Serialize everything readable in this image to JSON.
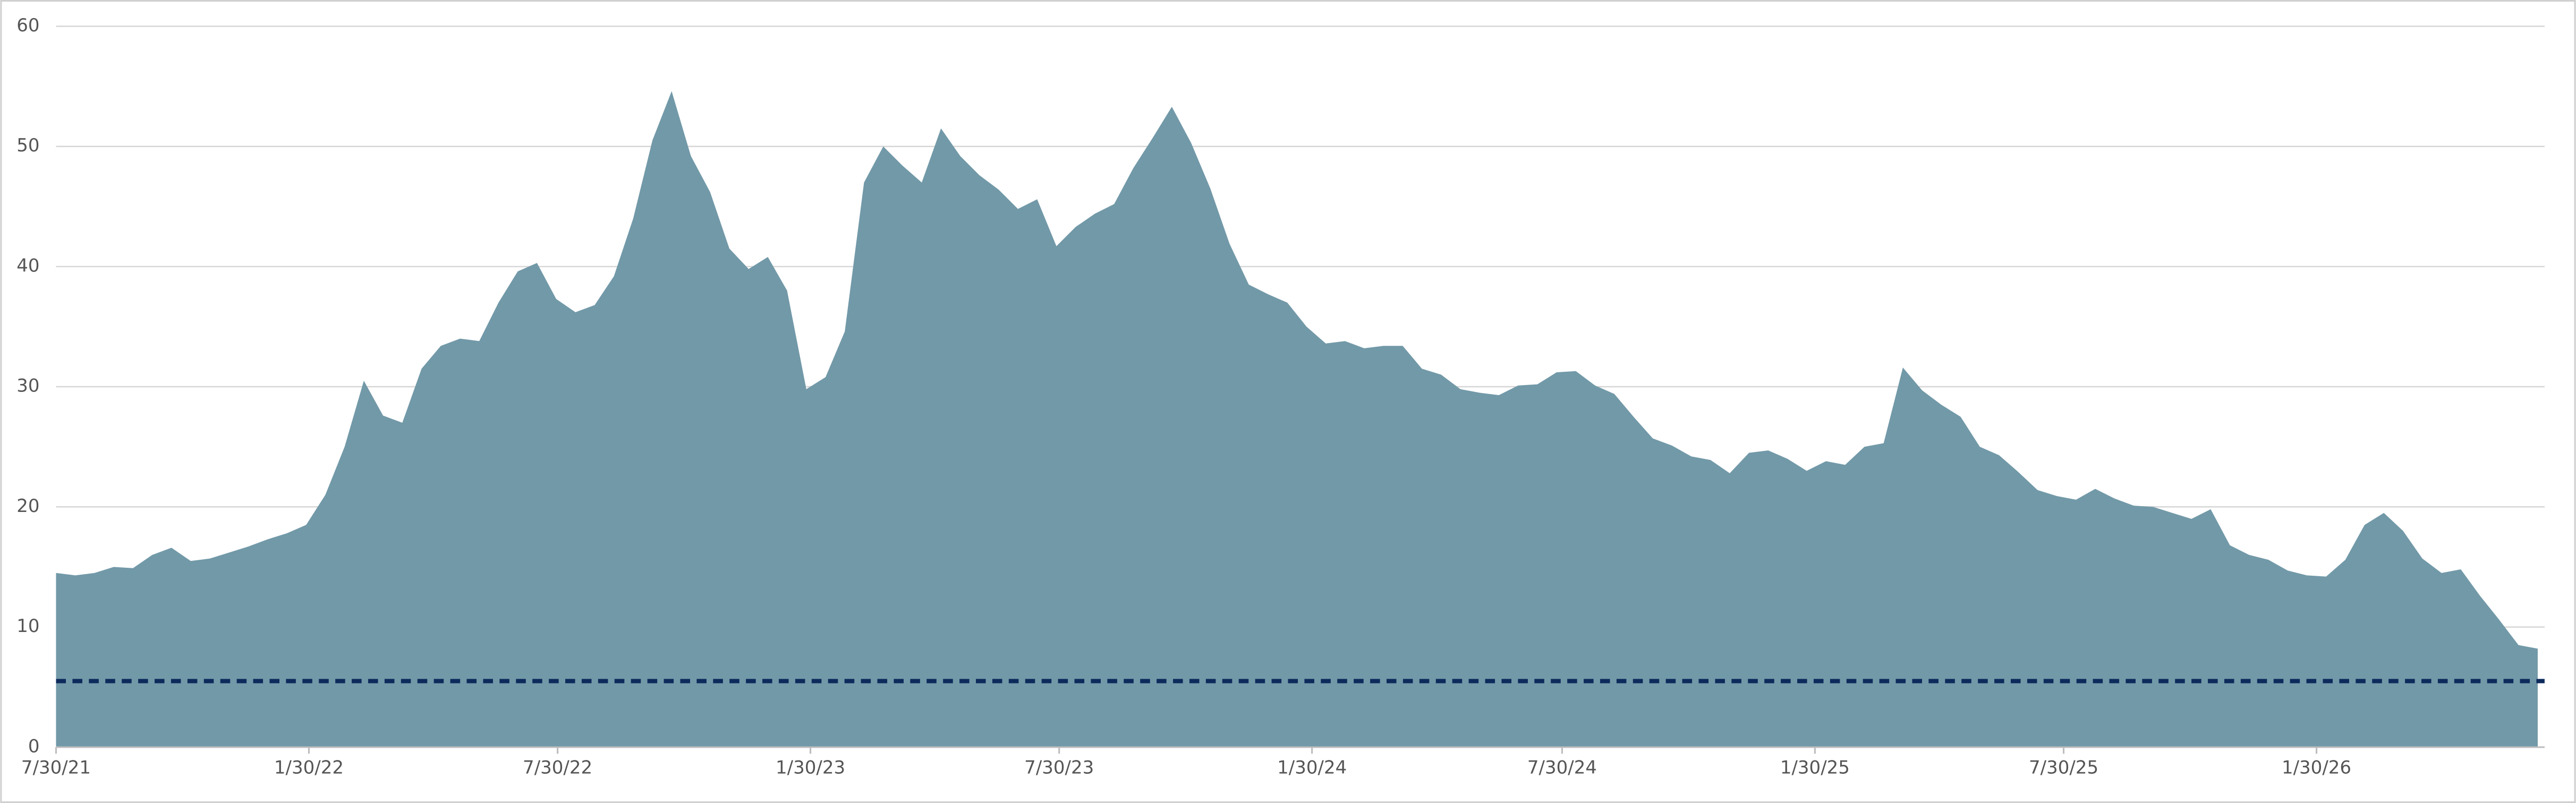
{
  "chart_data": {
    "type": "area",
    "color": "#7299a8",
    "grid": true,
    "x": [
      "7/30/21",
      "8/13/21",
      "8/27/21",
      "9/10/21",
      "9/24/21",
      "10/8/21",
      "10/22/21",
      "11/5/21",
      "11/19/21",
      "12/3/21",
      "12/17/21",
      "12/31/21",
      "1/14/22",
      "1/28/22",
      "2/11/22",
      "2/25/22",
      "3/11/22",
      "3/25/22",
      "4/8/22",
      "4/22/22",
      "5/6/22",
      "5/20/22",
      "6/3/22",
      "6/17/22",
      "7/1/22",
      "7/15/22",
      "7/29/22",
      "8/12/22",
      "8/26/22",
      "9/9/22",
      "9/23/22",
      "10/7/22",
      "10/21/22",
      "11/4/22",
      "11/18/22",
      "12/2/22",
      "12/16/22",
      "12/30/22",
      "1/13/23",
      "1/27/23",
      "2/10/23",
      "2/24/23",
      "3/10/23",
      "3/24/23",
      "4/7/23",
      "4/21/23",
      "5/5/23",
      "5/19/23",
      "6/2/23",
      "6/16/23",
      "6/30/23",
      "7/14/23",
      "7/28/23",
      "8/11/23",
      "8/25/23",
      "9/8/23",
      "9/22/23",
      "10/6/23",
      "10/20/23",
      "11/3/23",
      "11/17/23",
      "12/1/23",
      "12/15/23",
      "12/29/23",
      "1/12/24",
      "1/26/24",
      "2/9/24",
      "2/23/24",
      "3/8/24",
      "3/22/24",
      "4/5/24",
      "4/19/24",
      "5/3/24",
      "5/17/24",
      "5/31/24",
      "6/14/24",
      "6/28/24",
      "7/12/24",
      "7/26/24",
      "8/9/24",
      "8/23/24",
      "9/6/24",
      "9/20/24",
      "10/4/24",
      "10/18/24",
      "11/1/24",
      "11/15/24",
      "11/29/24",
      "12/13/24",
      "12/27/24",
      "1/10/25",
      "1/24/25",
      "2/7/25",
      "2/21/25",
      "3/7/25",
      "3/21/25",
      "4/4/25",
      "4/18/25",
      "5/2/25",
      "5/16/25",
      "5/30/25",
      "6/13/25",
      "6/27/25",
      "7/11/25",
      "7/25/25",
      "8/8/25",
      "8/22/25",
      "9/5/25",
      "9/19/25",
      "10/3/25",
      "10/17/25",
      "10/31/25",
      "11/14/25",
      "11/28/25",
      "12/12/25",
      "12/26/25",
      "1/9/26",
      "1/23/26",
      "2/6/26",
      "2/20/26",
      "3/6/26",
      "3/20/26",
      "4/3/26",
      "4/17/26",
      "5/1/26",
      "5/15/26",
      "5/29/26",
      "6/12/26",
      "6/26/26",
      "7/10/26"
    ],
    "values": [
      14.5,
      14.3,
      14.5,
      15,
      14.9,
      16,
      16.6,
      15.5,
      15.7,
      16.2,
      16.7,
      17.3,
      17.8,
      18.5,
      21,
      25,
      30.5,
      27.6,
      27,
      31.5,
      33.4,
      34,
      33.8,
      37,
      39.6,
      40.3,
      37.3,
      36.2,
      36.8,
      39.2,
      44,
      50.5,
      54.6,
      49.2,
      46.2,
      41.5,
      39.8,
      40.8,
      38,
      29.8,
      30.8,
      34.6,
      47,
      50,
      48.4,
      47,
      51.5,
      49.2,
      47.6,
      46.4,
      44.8,
      45.6,
      41.7,
      43.3,
      44.4,
      45.2,
      48.2,
      50.7,
      53.3,
      50.3,
      46.5,
      41.9,
      38.5,
      37.7,
      37,
      35,
      33.6,
      33.8,
      33.2,
      33.4,
      33.4,
      31.5,
      31,
      29.8,
      29.5,
      29.3,
      30.1,
      30.2,
      31.2,
      31.3,
      30.1,
      29.4,
      27.5,
      25.7,
      25.1,
      24.2,
      23.9,
      22.8,
      24.5,
      24.7,
      24,
      23,
      23.8,
      23.5,
      25,
      25.3,
      31.6,
      29.7,
      28.5,
      27.5,
      25,
      24.3,
      22.9,
      21.4,
      20.9,
      20.6,
      21.5,
      20.7,
      20.1,
      20,
      19.5,
      19,
      19.8,
      16.8,
      16,
      15.6,
      14.7,
      14.3,
      14.2,
      15.6,
      18.5,
      19.5,
      18,
      15.7,
      14.5,
      14.8,
      12.6,
      10.6,
      8.5,
      8.2
    ],
    "xlim": [
      "7/30/21",
      "7/15/26"
    ],
    "xticks": [
      "7/30/21",
      "1/30/22",
      "7/30/22",
      "1/30/23",
      "7/30/23",
      "1/30/24",
      "7/30/24",
      "1/30/25",
      "7/30/25",
      "1/30/26"
    ],
    "ylim": [
      0,
      60
    ],
    "yticks": [
      0,
      10,
      20,
      30,
      40,
      50,
      60
    ],
    "reference_line": {
      "value": 5.5,
      "color": "#0d2a5c",
      "style": "dashed"
    }
  }
}
